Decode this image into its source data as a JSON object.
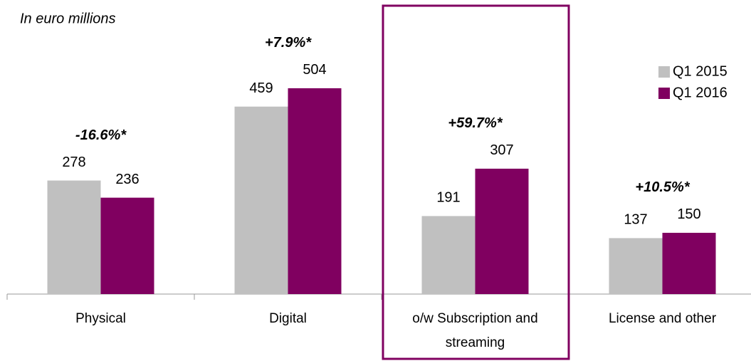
{
  "chart_data": {
    "type": "bar",
    "subtitle": "In euro millions",
    "categories": [
      "Physical",
      "Digital",
      "o/w Subscription  and streaming",
      "License and other"
    ],
    "series": [
      {
        "name": "Q1 2015",
        "color": "#c0c0c0",
        "values": [
          278,
          459,
          191,
          137
        ]
      },
      {
        "name": "Q1 2016",
        "color": "#800060",
        "values": [
          236,
          504,
          307,
          150
        ]
      }
    ],
    "annotations": [
      "-16.6%*",
      "+7.9%*",
      "+59.7%*",
      "+10.5%*"
    ],
    "ylim": [
      0,
      720
    ],
    "highlight": 2,
    "legend": "top-right"
  }
}
